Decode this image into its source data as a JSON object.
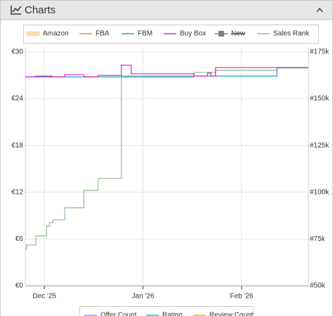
{
  "header": {
    "title": "Charts"
  },
  "chart_data": {
    "type": "step",
    "xlim": [
      -6,
      83
    ],
    "xticks": [
      {
        "value": 0,
        "label": "Dec '25"
      },
      {
        "value": 31,
        "label": "Jan '26"
      },
      {
        "value": 62,
        "label": "Feb '26"
      }
    ],
    "ylim": [
      0,
      30
    ],
    "yticks": [
      {
        "value": 0,
        "label": "€0"
      },
      {
        "value": 6,
        "label": "€6"
      },
      {
        "value": 12,
        "label": "€12"
      },
      {
        "value": 18,
        "label": "€18"
      },
      {
        "value": 24,
        "label": "€24"
      },
      {
        "value": 30,
        "label": "€30"
      }
    ],
    "y2lim": [
      50000,
      175000
    ],
    "y2ticks": [
      {
        "value": 50000,
        "label": "#50k"
      },
      {
        "value": 75000,
        "label": "#75k"
      },
      {
        "value": 100000,
        "label": "#100k"
      },
      {
        "value": 125000,
        "label": "#125k"
      },
      {
        "value": 150000,
        "label": "#150k"
      },
      {
        "value": 175000,
        "label": "#175k"
      }
    ],
    "grid": true,
    "series": [
      {
        "name": "Amazon",
        "color": "#f5c77e",
        "legend": "top",
        "swatch": "area",
        "x": [],
        "values": []
      },
      {
        "name": "FBA",
        "color": "#ff7f50",
        "legend": "top",
        "x": [],
        "values": []
      },
      {
        "name": "FBM",
        "color": "#1f9bd7",
        "legend": "top",
        "x": [
          -6,
          47,
          73.1,
          83
        ],
        "values": [
          26.8,
          26.9,
          28.0,
          28.0
        ]
      },
      {
        "name": "Buy Box",
        "color": "#e81ec3",
        "legend": "top",
        "x": [
          -6,
          -2.7,
          2.4,
          6.4,
          12.4,
          16.9,
          24.2,
          27.3,
          47,
          51.3,
          52.4,
          53.8,
          83
        ],
        "values": [
          26.8,
          26.9,
          26.8,
          27.1,
          26.8,
          27.0,
          28.3,
          27.2,
          26.9,
          27.3,
          26.9,
          28.0,
          28.0
        ]
      },
      {
        "name": "New",
        "color": "#7f7f7f",
        "legend": "top",
        "hidden": true,
        "swatch": "marker",
        "x": [],
        "values": []
      },
      {
        "name": "Sales Rank",
        "color": "#8fbc8f",
        "legend": "top",
        "axis": "y2",
        "x": [
          -6,
          -5.6,
          -2.7,
          0.7,
          1.6,
          2.7,
          6.4,
          12.4,
          16.9,
          24.2,
          47.1,
          53.8,
          73.1,
          83
        ],
        "values": [
          69500,
          71800,
          76700,
          81900,
          83800,
          85300,
          91700,
          101000,
          107400,
          162200,
          164100,
          165200,
          166400,
          166400
        ]
      },
      {
        "name": "Offer Count",
        "color": "#a898e8",
        "legend": "bottom",
        "x": [],
        "values": []
      },
      {
        "name": "Rating",
        "color": "#3cb4a0",
        "legend": "bottom",
        "x": [],
        "values": []
      },
      {
        "name": "Review Count",
        "color": "#c8c040",
        "legend": "bottom",
        "x": [],
        "values": []
      }
    ]
  }
}
